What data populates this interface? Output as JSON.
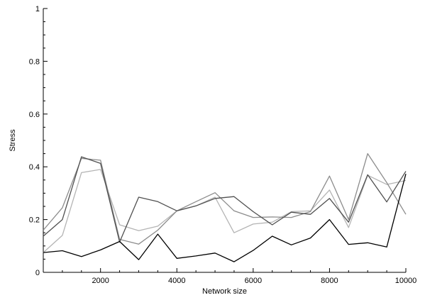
{
  "chart_data": {
    "type": "line",
    "xlabel": "Network size",
    "ylabel": "Stress",
    "xlim": [
      500,
      10000
    ],
    "ylim": [
      0,
      1
    ],
    "x_ticks": [
      2000,
      4000,
      6000,
      8000,
      10000
    ],
    "y_ticks": [
      0,
      0.2,
      0.4,
      0.6,
      0.8,
      1
    ],
    "x_tick_labels": [
      "2000",
      "4000",
      "6000",
      "8000",
      "10000"
    ],
    "y_tick_labels": [
      "0",
      "0.2",
      "0.4",
      "0.6",
      "0.8",
      "1"
    ],
    "grid": false,
    "x": [
      500,
      1000,
      1500,
      2000,
      2500,
      3000,
      3500,
      4000,
      4500,
      5000,
      5500,
      6000,
      6500,
      7000,
      7500,
      8000,
      8500,
      9000,
      9500,
      10000
    ],
    "series": [
      {
        "color": "#000000",
        "values": [
          0.075,
          0.082,
          0.06,
          0.085,
          0.117,
          0.048,
          0.145,
          0.053,
          0.062,
          0.073,
          0.04,
          0.083,
          0.137,
          0.104,
          0.13,
          0.2,
          0.106,
          0.112,
          0.096,
          0.373
        ]
      },
      {
        "color": "#505050",
        "values": [
          0.137,
          0.2,
          0.438,
          0.413,
          0.115,
          0.285,
          0.268,
          0.233,
          0.252,
          0.28,
          0.287,
          0.23,
          0.18,
          0.228,
          0.22,
          0.28,
          0.19,
          0.37,
          0.267,
          0.383
        ]
      },
      {
        "color": "#8c8c8c",
        "values": [
          0.16,
          0.245,
          0.432,
          0.425,
          0.125,
          0.107,
          0.16,
          0.233,
          0.268,
          0.302,
          0.233,
          0.208,
          0.21,
          0.208,
          0.23,
          0.365,
          0.2,
          0.45,
          0.34,
          0.22
        ]
      },
      {
        "color": "#b4b4b4",
        "values": [
          0.075,
          0.14,
          0.378,
          0.39,
          0.18,
          0.158,
          0.175,
          0.233,
          0.252,
          0.285,
          0.15,
          0.183,
          0.19,
          0.23,
          0.233,
          0.312,
          0.17,
          0.368,
          0.333,
          0.348
        ]
      }
    ]
  }
}
